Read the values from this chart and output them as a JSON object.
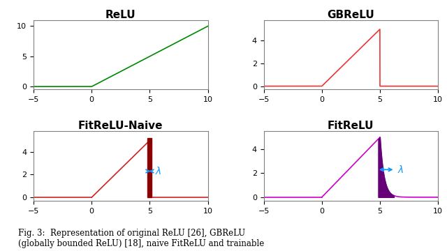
{
  "title_relu": "ReLU",
  "title_gbrelu": "GBReLU",
  "title_fitnaive": "FitReLU-Naive",
  "title_fitrelu": "FitReLU",
  "xlim": [
    -5,
    10
  ],
  "relu_color": "#008800",
  "gbrelu_color": "#ee3333",
  "fitnaive_line_color": "#cc2222",
  "fitnaive_fill_color": "#8B0000",
  "fitrelu_line_color": "#cc00cc",
  "fitrelu_fill_color": "#660077",
  "lambda_color": "#1199ff",
  "title_fontsize": 11,
  "tick_fontsize": 8,
  "caption": "Fig. 3:  Representation of original ReLU [26], GBReLU\n(globally bounded ReLU) [18], naive FitReLU and trainable"
}
